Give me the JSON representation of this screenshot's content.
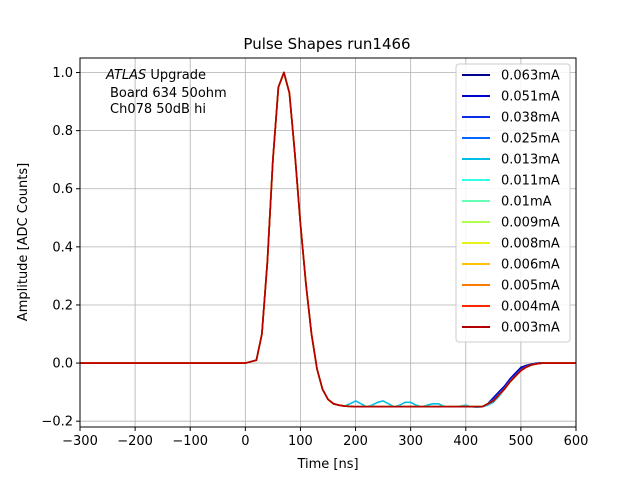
{
  "chart_data": {
    "type": "line",
    "title": "Pulse Shapes run1466",
    "xlabel": "Time [ns]",
    "ylabel": "Amplitude [ADC Counts]",
    "xlim": [
      -300,
      600
    ],
    "ylim": [
      -0.22,
      1.05
    ],
    "xticks": [
      -300,
      -200,
      -100,
      0,
      100,
      200,
      300,
      400,
      500,
      600
    ],
    "xtick_labels": [
      "−300",
      "−200",
      "−100",
      "0",
      "100",
      "200",
      "300",
      "400",
      "500",
      "600"
    ],
    "yticks": [
      -0.2,
      0.0,
      0.2,
      0.4,
      0.6,
      0.8,
      1.0
    ],
    "ytick_labels": [
      "−0.2",
      "0.0",
      "0.2",
      "0.4",
      "0.6",
      "0.8",
      "1.0"
    ],
    "grid": true,
    "legend_position": "top-right",
    "annotation": {
      "line1_italic": "ATLAS",
      "line1_rest": " Upgrade",
      "line2": "Board 634 50ohm",
      "line3": "Ch078 50dB hi"
    },
    "series": [
      {
        "name": "0.063mA",
        "color": "#00008f",
        "x": [
          -300,
          0,
          20,
          30,
          40,
          50,
          60,
          70,
          80,
          90,
          100,
          110,
          120,
          130,
          140,
          150,
          160,
          170,
          180,
          200,
          250,
          300,
          350,
          400,
          430,
          440,
          450,
          460,
          470,
          480,
          490,
          500,
          510,
          520,
          530,
          540,
          560,
          600
        ],
        "y": [
          0,
          0,
          0.01,
          0.1,
          0.35,
          0.7,
          0.95,
          1.0,
          0.93,
          0.72,
          0.48,
          0.27,
          0.1,
          -0.02,
          -0.09,
          -0.125,
          -0.14,
          -0.145,
          -0.148,
          -0.15,
          -0.15,
          -0.15,
          -0.15,
          -0.15,
          -0.15,
          -0.14,
          -0.12,
          -0.1,
          -0.08,
          -0.055,
          -0.035,
          -0.015,
          -0.008,
          -0.003,
          0,
          0,
          0,
          0
        ]
      },
      {
        "name": "0.051mA",
        "color": "#0000cc",
        "x": [
          -300,
          0,
          20,
          30,
          40,
          50,
          60,
          70,
          80,
          90,
          100,
          110,
          120,
          130,
          140,
          150,
          160,
          170,
          180,
          200,
          250,
          300,
          350,
          400,
          430,
          440,
          450,
          460,
          470,
          480,
          490,
          500,
          510,
          520,
          530,
          540,
          560,
          600
        ],
        "y": [
          0,
          0,
          0.01,
          0.1,
          0.35,
          0.7,
          0.95,
          1.0,
          0.93,
          0.72,
          0.48,
          0.27,
          0.1,
          -0.02,
          -0.09,
          -0.125,
          -0.14,
          -0.145,
          -0.148,
          -0.15,
          -0.15,
          -0.15,
          -0.15,
          -0.15,
          -0.15,
          -0.14,
          -0.12,
          -0.1,
          -0.08,
          -0.055,
          -0.035,
          -0.018,
          -0.01,
          -0.004,
          0,
          0,
          0,
          0
        ]
      },
      {
        "name": "0.038mA",
        "color": "#0a2ee6",
        "x": [
          -300,
          0,
          20,
          30,
          40,
          50,
          60,
          70,
          80,
          90,
          100,
          110,
          120,
          130,
          140,
          150,
          160,
          170,
          180,
          200,
          250,
          300,
          350,
          400,
          430,
          440,
          450,
          460,
          470,
          480,
          490,
          500,
          510,
          520,
          530,
          540,
          560,
          600
        ],
        "y": [
          0,
          0,
          0.01,
          0.1,
          0.35,
          0.7,
          0.95,
          1.0,
          0.93,
          0.72,
          0.48,
          0.27,
          0.1,
          -0.02,
          -0.09,
          -0.125,
          -0.14,
          -0.145,
          -0.148,
          -0.15,
          -0.15,
          -0.15,
          -0.15,
          -0.15,
          -0.15,
          -0.14,
          -0.125,
          -0.105,
          -0.085,
          -0.06,
          -0.04,
          -0.022,
          -0.012,
          -0.005,
          -0.001,
          0,
          0,
          0
        ]
      },
      {
        "name": "0.025mA",
        "color": "#0066ff",
        "x": [
          -300,
          0,
          20,
          30,
          40,
          50,
          60,
          70,
          80,
          90,
          100,
          110,
          120,
          130,
          140,
          150,
          160,
          170,
          180,
          200,
          250,
          300,
          350,
          400,
          430,
          440,
          450,
          460,
          470,
          480,
          490,
          500,
          510,
          520,
          530,
          540,
          560,
          600
        ],
        "y": [
          0,
          0,
          0.01,
          0.1,
          0.35,
          0.7,
          0.95,
          1.0,
          0.93,
          0.72,
          0.48,
          0.27,
          0.1,
          -0.02,
          -0.09,
          -0.125,
          -0.14,
          -0.145,
          -0.148,
          -0.15,
          -0.15,
          -0.15,
          -0.15,
          -0.15,
          -0.15,
          -0.14,
          -0.13,
          -0.11,
          -0.09,
          -0.065,
          -0.045,
          -0.026,
          -0.014,
          -0.006,
          -0.002,
          0,
          0,
          0
        ]
      },
      {
        "name": "0.013mA",
        "color": "#00bfe6",
        "x": [
          -300,
          0,
          20,
          30,
          40,
          50,
          60,
          70,
          80,
          90,
          100,
          110,
          120,
          130,
          140,
          150,
          160,
          170,
          180,
          190,
          200,
          210,
          220,
          230,
          240,
          250,
          260,
          270,
          280,
          290,
          300,
          310,
          320,
          330,
          340,
          350,
          360,
          370,
          380,
          390,
          400,
          410,
          420,
          430,
          440,
          450,
          460,
          470,
          480,
          490,
          500,
          510,
          520,
          530,
          540,
          560,
          600
        ],
        "y": [
          0,
          0,
          0.01,
          0.1,
          0.35,
          0.7,
          0.95,
          1.0,
          0.93,
          0.72,
          0.48,
          0.27,
          0.1,
          -0.02,
          -0.09,
          -0.125,
          -0.14,
          -0.145,
          -0.148,
          -0.14,
          -0.13,
          -0.14,
          -0.15,
          -0.145,
          -0.135,
          -0.13,
          -0.14,
          -0.15,
          -0.145,
          -0.135,
          -0.135,
          -0.145,
          -0.15,
          -0.145,
          -0.14,
          -0.14,
          -0.148,
          -0.15,
          -0.15,
          -0.148,
          -0.145,
          -0.15,
          -0.152,
          -0.15,
          -0.145,
          -0.135,
          -0.115,
          -0.09,
          -0.065,
          -0.045,
          -0.026,
          -0.014,
          -0.006,
          -0.002,
          0,
          0,
          0
        ]
      },
      {
        "name": "0.011mA",
        "color": "#33ffe6",
        "x": [
          -300,
          0,
          20,
          30,
          40,
          50,
          60,
          70,
          80,
          90,
          100,
          110,
          120,
          130,
          140,
          150,
          160,
          170,
          180,
          200,
          250,
          300,
          350,
          400,
          430,
          440,
          450,
          460,
          470,
          480,
          490,
          500,
          510,
          520,
          530,
          540,
          560,
          600
        ],
        "y": [
          0,
          0,
          0.01,
          0.1,
          0.35,
          0.7,
          0.95,
          1.0,
          0.93,
          0.72,
          0.48,
          0.27,
          0.1,
          -0.02,
          -0.09,
          -0.125,
          -0.14,
          -0.145,
          -0.148,
          -0.15,
          -0.15,
          -0.15,
          -0.15,
          -0.15,
          -0.15,
          -0.14,
          -0.13,
          -0.11,
          -0.09,
          -0.065,
          -0.045,
          -0.026,
          -0.014,
          -0.006,
          -0.002,
          0,
          0,
          0
        ]
      },
      {
        "name": "0.01mA",
        "color": "#66ffb3",
        "x": [
          -300,
          0,
          20,
          30,
          40,
          50,
          60,
          70,
          80,
          90,
          100,
          110,
          120,
          130,
          140,
          150,
          160,
          170,
          180,
          200,
          250,
          300,
          350,
          400,
          430,
          440,
          450,
          460,
          470,
          480,
          490,
          500,
          510,
          520,
          530,
          540,
          560,
          600
        ],
        "y": [
          0,
          0,
          0.01,
          0.1,
          0.35,
          0.7,
          0.95,
          1.0,
          0.93,
          0.72,
          0.48,
          0.27,
          0.1,
          -0.02,
          -0.09,
          -0.125,
          -0.14,
          -0.145,
          -0.148,
          -0.15,
          -0.15,
          -0.15,
          -0.15,
          -0.15,
          -0.15,
          -0.14,
          -0.13,
          -0.11,
          -0.09,
          -0.065,
          -0.045,
          -0.026,
          -0.014,
          -0.006,
          -0.002,
          0,
          0,
          0
        ]
      },
      {
        "name": "0.009mA",
        "color": "#b3ff4d",
        "x": [
          -300,
          0,
          20,
          30,
          40,
          50,
          60,
          70,
          80,
          90,
          100,
          110,
          120,
          130,
          140,
          150,
          160,
          170,
          180,
          200,
          250,
          300,
          350,
          400,
          430,
          440,
          450,
          460,
          470,
          480,
          490,
          500,
          510,
          520,
          530,
          540,
          560,
          600
        ],
        "y": [
          0,
          0,
          0.01,
          0.1,
          0.35,
          0.7,
          0.95,
          1.0,
          0.93,
          0.72,
          0.48,
          0.27,
          0.1,
          -0.02,
          -0.09,
          -0.125,
          -0.14,
          -0.145,
          -0.148,
          -0.15,
          -0.15,
          -0.15,
          -0.15,
          -0.15,
          -0.15,
          -0.14,
          -0.13,
          -0.11,
          -0.09,
          -0.065,
          -0.045,
          -0.026,
          -0.014,
          -0.006,
          -0.002,
          0,
          0,
          0
        ]
      },
      {
        "name": "0.008mA",
        "color": "#e6f21a",
        "x": [
          -300,
          0,
          20,
          30,
          40,
          50,
          60,
          70,
          80,
          90,
          100,
          110,
          120,
          130,
          140,
          150,
          160,
          170,
          180,
          200,
          250,
          300,
          350,
          400,
          430,
          440,
          450,
          460,
          470,
          480,
          490,
          500,
          510,
          520,
          530,
          540,
          560,
          600
        ],
        "y": [
          0,
          0,
          0.01,
          0.1,
          0.35,
          0.7,
          0.95,
          1.0,
          0.93,
          0.72,
          0.48,
          0.27,
          0.1,
          -0.02,
          -0.09,
          -0.125,
          -0.14,
          -0.145,
          -0.148,
          -0.15,
          -0.15,
          -0.15,
          -0.15,
          -0.15,
          -0.15,
          -0.14,
          -0.13,
          -0.11,
          -0.09,
          -0.065,
          -0.045,
          -0.026,
          -0.014,
          -0.006,
          -0.002,
          0,
          0,
          0
        ]
      },
      {
        "name": "0.006mA",
        "color": "#ffc000",
        "x": [
          -300,
          0,
          20,
          30,
          40,
          50,
          60,
          70,
          80,
          90,
          100,
          110,
          120,
          130,
          140,
          150,
          160,
          170,
          180,
          200,
          250,
          300,
          350,
          400,
          430,
          440,
          450,
          460,
          470,
          480,
          490,
          500,
          510,
          520,
          530,
          540,
          560,
          600
        ],
        "y": [
          0,
          0,
          0.01,
          0.1,
          0.35,
          0.7,
          0.95,
          1.0,
          0.93,
          0.72,
          0.48,
          0.27,
          0.1,
          -0.02,
          -0.09,
          -0.125,
          -0.14,
          -0.145,
          -0.148,
          -0.15,
          -0.15,
          -0.15,
          -0.15,
          -0.15,
          -0.15,
          -0.14,
          -0.13,
          -0.11,
          -0.09,
          -0.065,
          -0.045,
          -0.026,
          -0.014,
          -0.006,
          -0.002,
          0,
          0,
          0
        ]
      },
      {
        "name": "0.005mA",
        "color": "#ff7a00",
        "x": [
          -300,
          0,
          20,
          30,
          40,
          50,
          60,
          70,
          80,
          90,
          100,
          110,
          120,
          130,
          140,
          150,
          160,
          170,
          180,
          200,
          250,
          300,
          350,
          400,
          430,
          440,
          450,
          460,
          470,
          480,
          490,
          500,
          510,
          520,
          530,
          540,
          560,
          600
        ],
        "y": [
          0,
          0,
          0.01,
          0.1,
          0.35,
          0.7,
          0.95,
          1.0,
          0.93,
          0.72,
          0.48,
          0.27,
          0.1,
          -0.02,
          -0.09,
          -0.125,
          -0.14,
          -0.145,
          -0.148,
          -0.15,
          -0.15,
          -0.15,
          -0.15,
          -0.15,
          -0.15,
          -0.14,
          -0.13,
          -0.11,
          -0.09,
          -0.065,
          -0.045,
          -0.026,
          -0.014,
          -0.006,
          -0.002,
          0,
          0,
          0
        ]
      },
      {
        "name": "0.004mA",
        "color": "#ff2600",
        "x": [
          -300,
          0,
          20,
          30,
          40,
          50,
          60,
          70,
          80,
          90,
          100,
          110,
          120,
          130,
          140,
          150,
          160,
          170,
          180,
          200,
          250,
          300,
          350,
          400,
          430,
          440,
          450,
          460,
          470,
          480,
          490,
          500,
          510,
          520,
          530,
          540,
          560,
          600
        ],
        "y": [
          0,
          0,
          0.01,
          0.1,
          0.35,
          0.7,
          0.95,
          1.0,
          0.93,
          0.72,
          0.48,
          0.27,
          0.1,
          -0.02,
          -0.09,
          -0.125,
          -0.14,
          -0.145,
          -0.148,
          -0.15,
          -0.15,
          -0.15,
          -0.15,
          -0.15,
          -0.15,
          -0.14,
          -0.13,
          -0.11,
          -0.09,
          -0.065,
          -0.045,
          -0.026,
          -0.014,
          -0.006,
          -0.002,
          0,
          0,
          0
        ]
      },
      {
        "name": "0.003mA",
        "color": "#b20000",
        "x": [
          -300,
          0,
          20,
          30,
          40,
          50,
          60,
          70,
          80,
          90,
          100,
          110,
          120,
          130,
          140,
          150,
          160,
          170,
          180,
          200,
          250,
          300,
          350,
          400,
          430,
          440,
          450,
          460,
          470,
          480,
          490,
          500,
          510,
          520,
          530,
          540,
          560,
          600
        ],
        "y": [
          0,
          0,
          0.01,
          0.1,
          0.35,
          0.7,
          0.95,
          1.0,
          0.93,
          0.72,
          0.48,
          0.27,
          0.1,
          -0.02,
          -0.09,
          -0.125,
          -0.14,
          -0.145,
          -0.148,
          -0.15,
          -0.15,
          -0.15,
          -0.15,
          -0.15,
          -0.15,
          -0.14,
          -0.13,
          -0.11,
          -0.09,
          -0.065,
          -0.045,
          -0.026,
          -0.014,
          -0.006,
          -0.002,
          0,
          0,
          0
        ]
      }
    ]
  }
}
